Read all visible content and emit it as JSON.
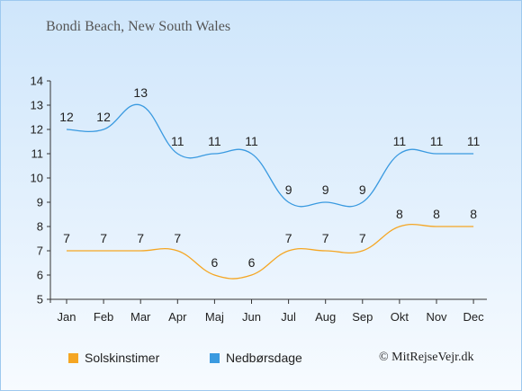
{
  "chart_data": {
    "type": "line",
    "title": "Bondi Beach, New South Wales",
    "categories": [
      "Jan",
      "Feb",
      "Mar",
      "Apr",
      "Maj",
      "Jun",
      "Jul",
      "Aug",
      "Sep",
      "Okt",
      "Nov",
      "Dec"
    ],
    "series": [
      {
        "name": "Solskinstimer",
        "color": "#f5a623",
        "values": [
          7,
          7,
          7,
          7,
          6,
          6,
          7,
          7,
          7,
          8,
          8,
          8
        ]
      },
      {
        "name": "Nedbørsdage",
        "color": "#3a9ae0",
        "values": [
          12,
          12,
          13,
          11,
          11,
          11,
          9,
          9,
          9,
          11,
          11,
          11
        ]
      }
    ],
    "ylim": [
      5,
      14
    ],
    "yticks": [
      "5",
      "6",
      "7",
      "8",
      "9",
      "10",
      "11",
      "12",
      "13",
      "14"
    ],
    "grid": false,
    "legend": "bottom"
  },
  "credit": "© MitRejseVejr.dk"
}
